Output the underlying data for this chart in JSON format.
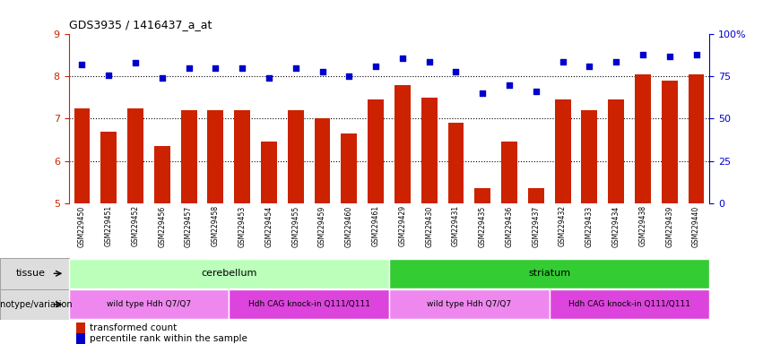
{
  "title": "GDS3935 / 1416437_a_at",
  "samples": [
    "GSM229450",
    "GSM229451",
    "GSM229452",
    "GSM229456",
    "GSM229457",
    "GSM229458",
    "GSM229453",
    "GSM229454",
    "GSM229455",
    "GSM229459",
    "GSM229460",
    "GSM229461",
    "GSM229429",
    "GSM229430",
    "GSM229431",
    "GSM229435",
    "GSM229436",
    "GSM229437",
    "GSM229432",
    "GSM229433",
    "GSM229434",
    "GSM229438",
    "GSM229439",
    "GSM229440"
  ],
  "bar_values": [
    7.25,
    6.7,
    7.25,
    6.35,
    7.2,
    7.2,
    7.2,
    6.45,
    7.2,
    7.0,
    6.65,
    7.45,
    7.8,
    7.5,
    6.9,
    5.35,
    6.45,
    5.35,
    7.45,
    7.2,
    7.45,
    8.05,
    7.9,
    8.05
  ],
  "dot_values": [
    82,
    76,
    83,
    74,
    80,
    80,
    80,
    74,
    80,
    78,
    75,
    81,
    86,
    84,
    78,
    65,
    70,
    66,
    84,
    81,
    84,
    88,
    87,
    88
  ],
  "bar_color": "#cc2200",
  "dot_color": "#0000cc",
  "ylim_left": [
    5,
    9
  ],
  "ylim_right": [
    0,
    100
  ],
  "yticks_left": [
    5,
    6,
    7,
    8,
    9
  ],
  "yticks_right": [
    0,
    25,
    50,
    75,
    100
  ],
  "ytick_labels_right": [
    "0",
    "25",
    "50",
    "75",
    "100%"
  ],
  "grid_values": [
    6,
    7,
    8
  ],
  "tissue_groups": [
    {
      "label": "cerebellum",
      "start": 0,
      "end": 12,
      "color": "#bbffbb"
    },
    {
      "label": "striatum",
      "start": 12,
      "end": 24,
      "color": "#33cc33"
    }
  ],
  "genotype_groups": [
    {
      "label": "wild type Hdh Q7/Q7",
      "start": 0,
      "end": 6,
      "color": "#ee88ee"
    },
    {
      "label": "Hdh CAG knock-in Q111/Q111",
      "start": 6,
      "end": 12,
      "color": "#dd44dd"
    },
    {
      "label": "wild type Hdh Q7/Q7",
      "start": 12,
      "end": 18,
      "color": "#ee88ee"
    },
    {
      "label": "Hdh CAG knock-in Q111/Q111",
      "start": 18,
      "end": 24,
      "color": "#dd44dd"
    }
  ],
  "legend_bar_label": "transformed count",
  "legend_dot_label": "percentile rank within the sample",
  "tissue_label": "tissue",
  "genotype_label": "genotype/variation",
  "label_area_color": "#dddddd",
  "xtick_bg_color": "#cccccc"
}
